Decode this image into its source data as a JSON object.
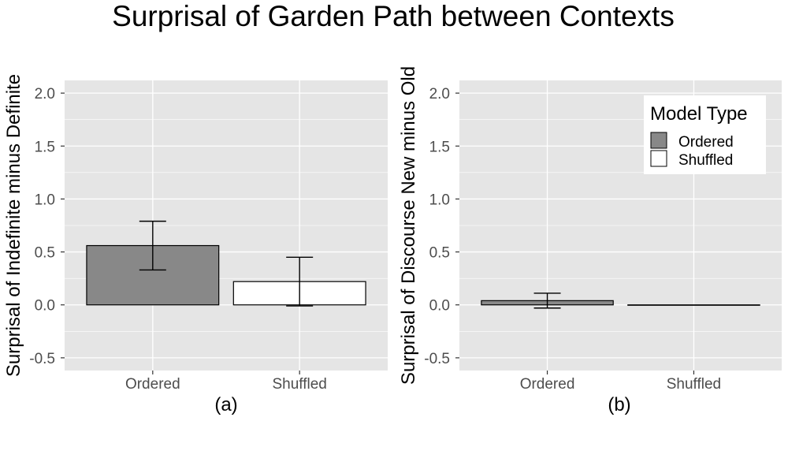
{
  "title": "Surprisal of Garden Path between Contexts",
  "colors": {
    "panel_background": "#e5e5e5",
    "grid": "#ffffff",
    "ordered_fill": "#888888",
    "shuffled_fill": "#ffffff",
    "bar_outline": "#000000"
  },
  "legend": {
    "title": "Model Type",
    "placement": "top-right of panel (b)",
    "entries": [
      "Ordered",
      "Shuffled"
    ]
  },
  "chart_data": [
    {
      "type": "bar",
      "categories": [
        "Ordered",
        "Shuffled"
      ],
      "values": [
        0.56,
        0.22
      ],
      "error_low": [
        0.33,
        -0.01
      ],
      "error_high": [
        0.79,
        0.45
      ],
      "ylabel": "Surprisal of Indefinite minus Definite",
      "xlabel": "(a)",
      "ylim": [
        -0.62,
        2.12
      ],
      "yticks": [
        "-0.5",
        "0.0",
        "0.5",
        "1.0",
        "1.5",
        "2.0"
      ],
      "grid": true
    },
    {
      "type": "bar",
      "categories": [
        "Ordered",
        "Shuffled"
      ],
      "values": [
        0.04,
        0.0
      ],
      "error_low": [
        -0.03,
        0.0
      ],
      "error_high": [
        0.11,
        0.0
      ],
      "ylabel": "Surprisal of Discourse New minus Old",
      "xlabel": "(b)",
      "ylim": [
        -0.62,
        2.12
      ],
      "yticks": [
        "-0.5",
        "0.0",
        "0.5",
        "1.0",
        "1.5",
        "2.0"
      ],
      "grid": true
    }
  ]
}
